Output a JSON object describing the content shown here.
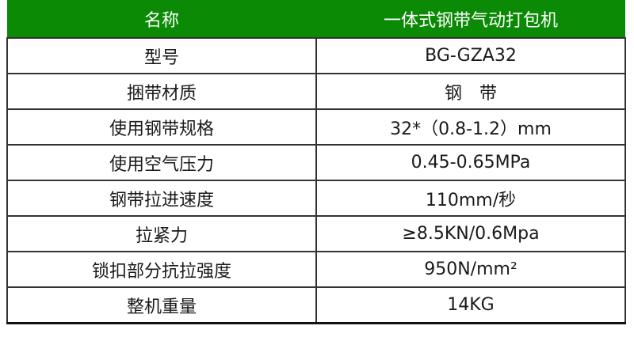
{
  "header": {
    "col1": "名称",
    "col2": "一体式钢带气动打包机"
  },
  "rows": [
    {
      "label": "型号",
      "value": "BG-GZA32"
    },
    {
      "label": "捆带材质",
      "value": "钢　带"
    },
    {
      "label": "使用钢带规格",
      "value": "32*（0.8-1.2）mm"
    },
    {
      "label": "使用空气压力",
      "value": "0.45-0.65MPa"
    },
    {
      "label": "钢带拉进速度",
      "value": "110mm/秒"
    },
    {
      "label": "拉紧力",
      "value": "≥8.5KN/0.6Mpa"
    },
    {
      "label": "锁扣部分抗拉强度",
      "value": "950N/mm²"
    },
    {
      "label": "整机重量",
      "value": "14KG"
    }
  ],
  "colors": {
    "header_bg": "#0a8a05",
    "header_text": "#ffffff"
  }
}
